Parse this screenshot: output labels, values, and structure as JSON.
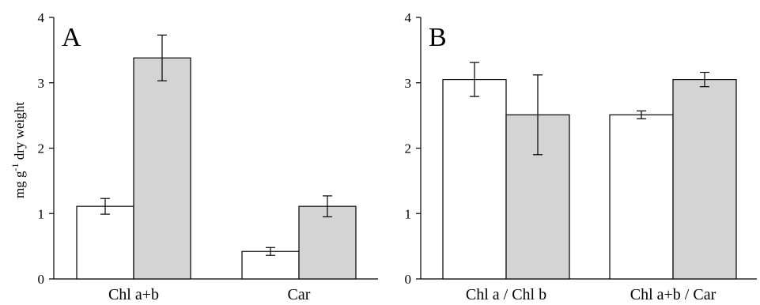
{
  "chart_data": [
    {
      "type": "bar",
      "panel": "A",
      "title": "",
      "ylabel_main": "mg g",
      "ylabel_sup": "-1",
      "ylabel_rest": " dry weight",
      "xlabel": "",
      "ylim": [
        0,
        4
      ],
      "yticks": [
        "0",
        "1",
        "2",
        "3",
        "4"
      ],
      "categories": [
        "Chl a+b",
        "Car"
      ],
      "series": [
        {
          "fill": "#ffffff",
          "values": [
            1.11,
            0.42
          ],
          "errors": [
            0.12,
            0.06
          ]
        },
        {
          "fill": "#d4d4d4",
          "values": [
            3.38,
            1.11
          ],
          "errors": [
            0.35,
            0.16
          ]
        }
      ]
    },
    {
      "type": "bar",
      "panel": "B",
      "title": "",
      "xlabel": "",
      "ylabel": "",
      "ylim": [
        0,
        4
      ],
      "yticks": [
        "0",
        "1",
        "2",
        "3",
        "4"
      ],
      "categories": [
        "Chl a / Chl b",
        "Chl a+b / Car"
      ],
      "series": [
        {
          "fill": "#ffffff",
          "values": [
            3.05,
            2.51
          ],
          "errors": [
            0.26,
            0.06
          ]
        },
        {
          "fill": "#d4d4d4",
          "values": [
            2.51,
            3.05
          ],
          "errors": [
            0.61,
            0.11
          ]
        }
      ]
    }
  ]
}
